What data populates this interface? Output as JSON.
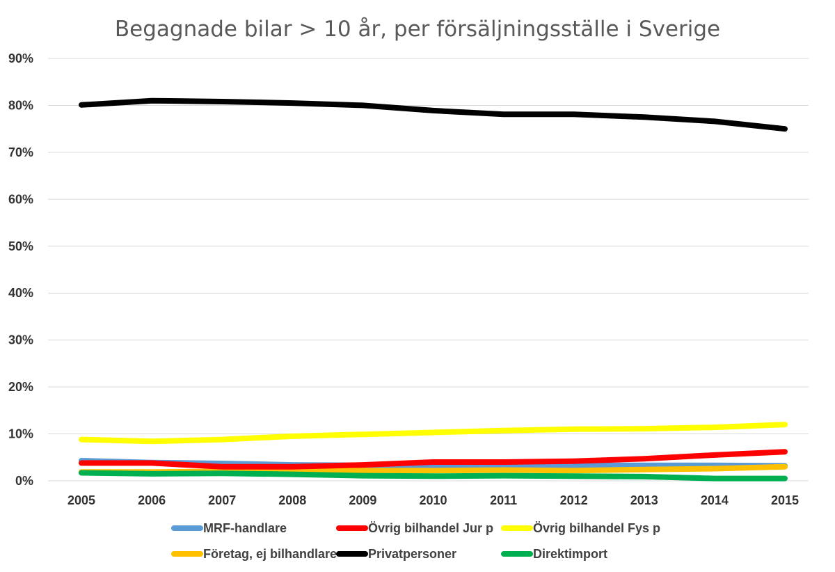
{
  "chart_data": {
    "type": "line",
    "title": "Begagnade bilar > 10 år, per försäljningsställe i Sverige",
    "xlabel": "",
    "ylabel": "",
    "x": [
      "2005",
      "2006",
      "2007",
      "2008",
      "2009",
      "2010",
      "2011",
      "2012",
      "2013",
      "2014",
      "2015"
    ],
    "ylim": [
      0,
      90
    ],
    "yticks": [
      "0%",
      "10%",
      "20%",
      "30%",
      "40%",
      "50%",
      "60%",
      "70%",
      "80%",
      "90%"
    ],
    "y_tick_values": [
      0,
      10,
      20,
      30,
      40,
      50,
      60,
      70,
      80,
      90
    ],
    "grid": true,
    "legend_position": "bottom",
    "series": [
      {
        "name": "MRF-handlare",
        "color": "#5b9bd5",
        "values": [
          4.3,
          3.9,
          3.7,
          3.4,
          3.3,
          3.3,
          3.2,
          3.3,
          3.3,
          3.3,
          3.2
        ]
      },
      {
        "name": "Övrig bilhandel Jur p",
        "color": "#ff0000",
        "values": [
          3.8,
          3.8,
          3.0,
          3.0,
          3.4,
          4.0,
          4.0,
          4.2,
          4.7,
          5.5,
          6.2
        ]
      },
      {
        "name": "Övrig bilhandel Fys p",
        "color": "#ffff00",
        "values": [
          8.8,
          8.4,
          8.8,
          9.5,
          9.9,
          10.3,
          10.7,
          11.0,
          11.1,
          11.4,
          12.0
        ]
      },
      {
        "name": "Företag, ej bilhandlare",
        "color": "#ffc000",
        "values": [
          1.9,
          1.9,
          2.0,
          2.2,
          2.2,
          2.2,
          2.3,
          2.2,
          2.4,
          2.6,
          3.0
        ]
      },
      {
        "name": "Privatpersoner",
        "color": "#000000",
        "values": [
          80.1,
          81.0,
          80.8,
          80.5,
          80.0,
          78.9,
          78.1,
          78.1,
          77.5,
          76.6,
          75.0
        ]
      },
      {
        "name": "Direktimport",
        "color": "#00b050",
        "values": [
          1.7,
          1.5,
          1.6,
          1.4,
          1.1,
          1.0,
          1.1,
          1.0,
          0.9,
          0.5,
          0.5
        ]
      }
    ]
  }
}
